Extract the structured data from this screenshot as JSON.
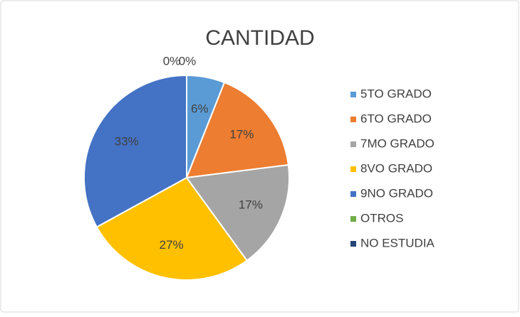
{
  "chart_data": {
    "type": "pie",
    "title": "CANTIDAD",
    "categories": [
      "5TO GRADO",
      "6TO GRADO",
      "7MO GRADO",
      "8VO GRADO",
      "9NO GRADO",
      "OTROS",
      "NO ESTUDIA"
    ],
    "values": [
      6,
      17,
      17,
      27,
      33,
      0,
      0
    ],
    "value_labels": [
      "6%",
      "17%",
      "17%",
      "27%",
      "33%",
      "0%",
      "0%"
    ],
    "colors": [
      "#5b9bd5",
      "#ed7d31",
      "#a5a5a5",
      "#ffc000",
      "#4472c4",
      "#70ad47",
      "#264478"
    ],
    "legend": "right"
  }
}
